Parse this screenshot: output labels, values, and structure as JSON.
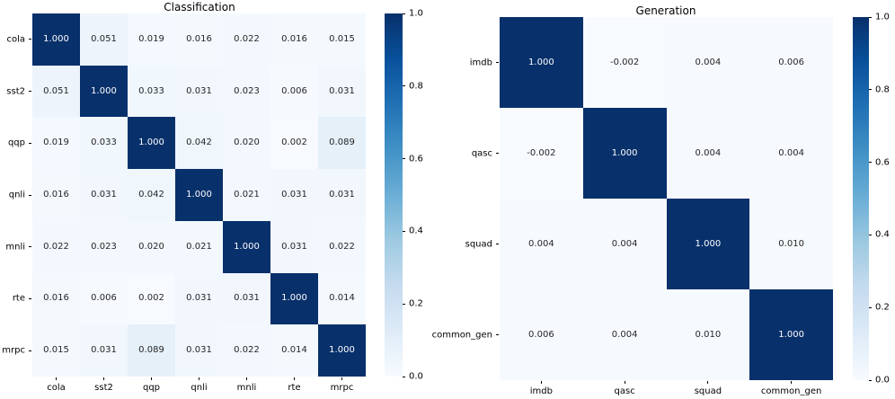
{
  "figure": {
    "background": "#ffffff",
    "colormap_name": "Blues",
    "colormap_stops": [
      "#f7fbff",
      "#deebf7",
      "#c6dbef",
      "#9ecae1",
      "#6baed6",
      "#4292c6",
      "#2171b5",
      "#08519c",
      "#08306b"
    ],
    "annotation_dark_text_color": "#262626",
    "annotation_light_text_color": "#ffffff"
  },
  "chart_data": [
    {
      "type": "heatmap",
      "title": "Classification",
      "categories": [
        "cola",
        "sst2",
        "qqp",
        "qnli",
        "mnli",
        "rte",
        "mrpc"
      ],
      "matrix": [
        [
          1.0,
          0.051,
          0.019,
          0.016,
          0.022,
          0.016,
          0.015
        ],
        [
          0.051,
          1.0,
          0.033,
          0.031,
          0.023,
          0.006,
          0.031
        ],
        [
          0.019,
          0.033,
          1.0,
          0.042,
          0.02,
          0.002,
          0.089
        ],
        [
          0.016,
          0.031,
          0.042,
          1.0,
          0.021,
          0.031,
          0.031
        ],
        [
          0.022,
          0.023,
          0.02,
          0.021,
          1.0,
          0.031,
          0.022
        ],
        [
          0.016,
          0.006,
          0.002,
          0.031,
          0.031,
          1.0,
          0.014
        ],
        [
          0.015,
          0.031,
          0.089,
          0.031,
          0.022,
          0.014,
          1.0
        ]
      ],
      "vmin": 0.0,
      "vmax": 1.0,
      "value_format": ".3f",
      "colorbar_ticks": [
        0.0,
        0.2,
        0.4,
        0.6,
        0.8,
        1.0
      ],
      "legend_position": "right-colorbar",
      "grid": "off"
    },
    {
      "type": "heatmap",
      "title": "Generation",
      "categories": [
        "imdb",
        "qasc",
        "squad",
        "common_gen"
      ],
      "matrix": [
        [
          1.0,
          -0.002,
          0.004,
          0.006
        ],
        [
          -0.002,
          1.0,
          0.004,
          0.004
        ],
        [
          0.004,
          0.004,
          1.0,
          0.01
        ],
        [
          0.006,
          0.004,
          0.01,
          1.0
        ]
      ],
      "vmin": 0.0,
      "vmax": 1.0,
      "value_format": ".3f",
      "colorbar_ticks": [
        0.0,
        0.2,
        0.4,
        0.6,
        0.8,
        1.0
      ],
      "legend_position": "right-colorbar",
      "grid": "off"
    }
  ]
}
